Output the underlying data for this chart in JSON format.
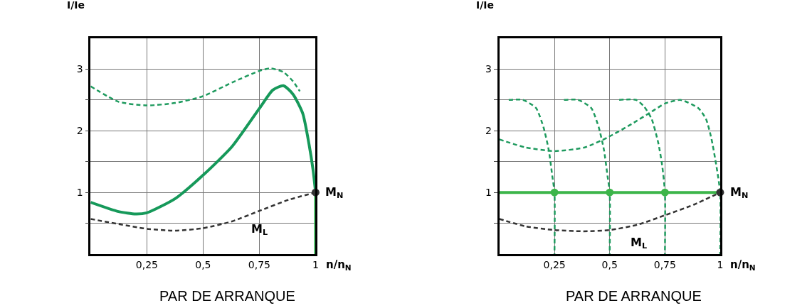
{
  "chart_data": [
    {
      "type": "line",
      "xlabel": "n/n$_{N}$",
      "ylabel": "I/Ie",
      "xlim": [
        0,
        1
      ],
      "ylim": [
        0,
        3.5
      ],
      "grid": true,
      "xticks": [
        {
          "value": 0.25,
          "label": "0,25"
        },
        {
          "value": 0.5,
          "label": "0,5"
        },
        {
          "value": 0.75,
          "label": "0,75"
        },
        1
      ],
      "yticks": [
        {
          "value": 0.5,
          "label": null
        },
        1,
        {
          "value": 1.5,
          "label": null
        },
        2,
        {
          "value": 2.5,
          "label": null
        },
        3
      ],
      "series": [
        {
          "type": "line",
          "line_style": "dashed",
          "color": "#1e9a5e",
          "x": [
            0,
            0.124,
            0.25,
            0.376,
            0.5,
            0.628,
            0.75,
            0.8,
            0.857,
            0.9,
            0.93
          ],
          "values": [
            2.72,
            2.47,
            2.41,
            2.45,
            2.56,
            2.78,
            2.97,
            3.01,
            2.95,
            2.8,
            2.64
          ]
        },
        {
          "type": "line",
          "line_style": "solid",
          "color": "#16995a",
          "x": [
            0,
            0.124,
            0.2,
            0.25,
            0.376,
            0.5,
            0.628,
            0.75,
            0.81,
            0.857,
            0.9,
            0.943,
            0.971,
            0.989,
            1
          ],
          "values": [
            0.84,
            0.69,
            0.65,
            0.67,
            0.9,
            1.28,
            1.74,
            2.36,
            2.66,
            2.73,
            2.59,
            2.28,
            1.78,
            1.36,
            1
          ]
        },
        {
          "type": "line",
          "line_style": "solid",
          "color": "#2db34a",
          "x": [
            1,
            1
          ],
          "values": [
            1,
            0
          ]
        },
        {
          "type": "line",
          "name": "M$_{L}$",
          "line_style": "dashed",
          "color": "#333333",
          "x": [
            0,
            0.25,
            0.376,
            0.5,
            0.628,
            0.75,
            0.88,
            1
          ],
          "values": [
            0.57,
            0.41,
            0.38,
            0.42,
            0.53,
            0.7,
            0.88,
            1.0
          ]
        },
        {
          "type": "scatter",
          "marker": "circle",
          "color": "#333333",
          "x": [
            1
          ],
          "values": [
            1
          ]
        }
      ],
      "annotations": [
        {
          "text": "M$_{N}$",
          "x": 1,
          "y": 1
        },
        "PAR DE ARRANQUE"
      ]
    },
    {
      "type": "line",
      "xlabel": "n/n$_{N}$",
      "ylabel": "I/Ie",
      "xlim": [
        0,
        1
      ],
      "ylim": [
        0,
        3.5
      ],
      "grid": true,
      "xticks": [
        {
          "value": 0.25,
          "label": "0,25"
        },
        {
          "value": 0.5,
          "label": "0,5"
        },
        {
          "value": 0.75,
          "label": "0,75"
        },
        1
      ],
      "yticks": [
        {
          "value": 0.5,
          "label": null
        },
        1,
        {
          "value": 1.5,
          "label": null
        },
        2,
        {
          "value": 2.5,
          "label": null
        },
        3
      ],
      "series": [
        {
          "type": "line",
          "line_style": "dashed",
          "color": "#1e9a5e",
          "x": [
            0.043,
            0.107,
            0.166,
            0.2,
            0.224,
            0.24,
            0.25,
            0.25
          ],
          "values": [
            2.5,
            2.5,
            2.37,
            2.06,
            1.69,
            1.27,
            1,
            0
          ]
        },
        {
          "type": "line",
          "line_style": "dashed",
          "color": "#1e9a5e",
          "x": [
            0.293,
            0.357,
            0.416,
            0.45,
            0.474,
            0.49,
            0.5,
            0.5
          ],
          "values": [
            2.5,
            2.5,
            2.37,
            2.06,
            1.69,
            1.27,
            1,
            0
          ]
        },
        {
          "type": "line",
          "line_style": "dashed",
          "color": "#1e9a5e",
          "x": [
            0.543,
            0.62,
            0.656,
            0.69,
            0.72,
            0.737,
            0.75,
            0.75
          ],
          "values": [
            2.5,
            2.5,
            2.39,
            2.19,
            1.8,
            1.45,
            1,
            0
          ]
        },
        {
          "type": "line",
          "line_style": "dashed",
          "color": "#1e9a5e",
          "x": [
            0,
            0.119,
            0.25,
            0.387,
            0.49,
            0.6,
            0.69,
            0.75,
            0.82,
            0.9,
            0.936,
            0.96,
            0.982,
            1,
            1
          ],
          "values": [
            1.86,
            1.73,
            1.67,
            1.73,
            1.89,
            2.11,
            2.31,
            2.44,
            2.5,
            2.37,
            2.19,
            1.88,
            1.45,
            1,
            0
          ]
        },
        {
          "type": "line",
          "name": "M$_{L}$",
          "line_style": "dashed",
          "color": "#333333",
          "x": [
            0,
            0.12,
            0.25,
            0.38,
            0.5,
            0.63,
            0.75,
            0.88,
            1
          ],
          "values": [
            0.57,
            0.45,
            0.39,
            0.37,
            0.39,
            0.48,
            0.63,
            0.8,
            1.0
          ]
        },
        {
          "type": "line",
          "line_style": "solid",
          "color": "#3cb54a",
          "x": [
            0,
            1
          ],
          "values": [
            1,
            1
          ]
        },
        {
          "type": "scatter",
          "marker": "circle",
          "color": "#3cb54a",
          "x": [
            0.25,
            0.5,
            0.75
          ],
          "values": [
            1,
            1,
            1
          ]
        },
        {
          "type": "scatter",
          "marker": "circle",
          "color": "#333333",
          "x": [
            1
          ],
          "values": [
            1
          ]
        }
      ],
      "annotations": [
        {
          "text": "M$_{N}$",
          "x": 1,
          "y": 1
        },
        "PAR DE ARRANQUE"
      ]
    }
  ]
}
